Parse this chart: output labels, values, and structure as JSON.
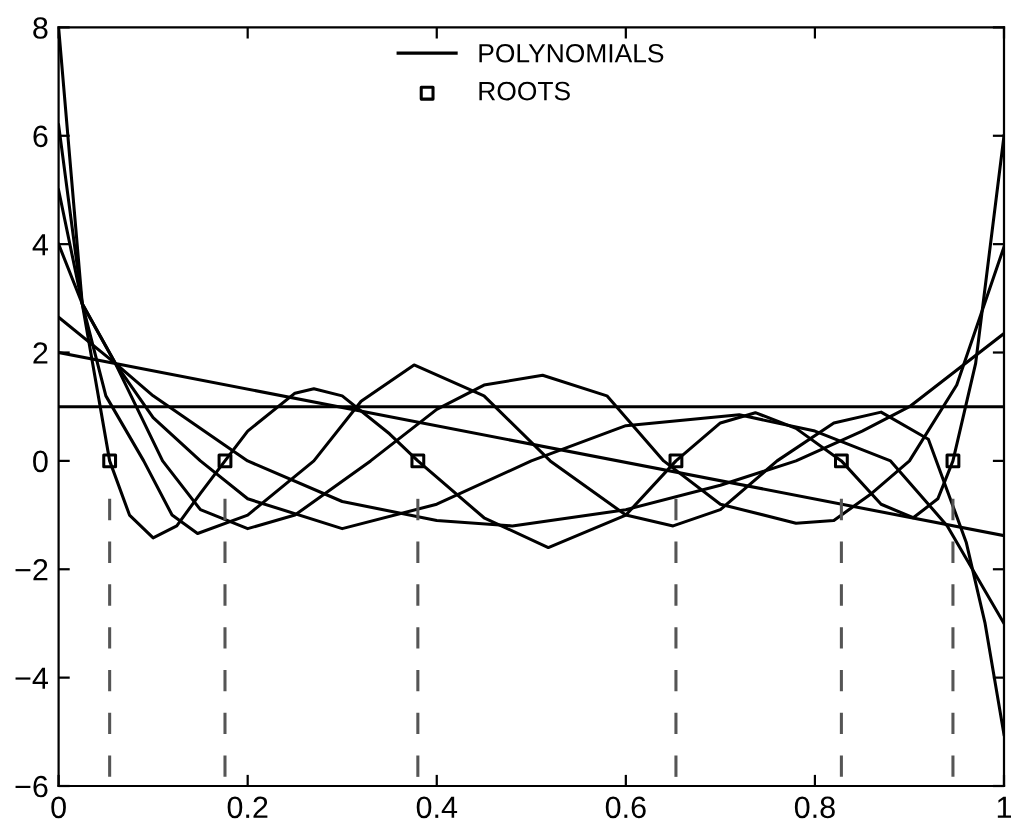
{
  "chart_data": {
    "type": "line",
    "xlim": [
      0,
      1
    ],
    "ylim": [
      -6,
      8
    ],
    "xticks": [
      0,
      0.2,
      0.4,
      0.6,
      0.8,
      1
    ],
    "yticks": [
      -6,
      -4,
      -2,
      0,
      2,
      4,
      6,
      8
    ],
    "grid": false,
    "legend": "top",
    "line_style": "solid",
    "marker": "none",
    "series": [
      {
        "name": "POLYNOMIALS",
        "color": "#000000",
        "x": [
          0,
          0.025,
          0.054,
          0.075,
          0.1,
          0.125,
          0.15,
          0.176,
          0.2,
          0.25,
          0.27,
          0.3,
          0.35,
          0.38,
          0.45,
          0.518,
          0.6,
          0.653,
          0.7,
          0.737,
          0.78,
          0.828,
          0.87,
          0.904,
          0.93,
          0.946,
          0.97,
          1
        ],
        "values": [
          8,
          2.9,
          0,
          -1.0,
          -1.42,
          -1.2,
          -0.6,
          0,
          0.55,
          1.25,
          1.33,
          1.2,
          0.5,
          0,
          -1.05,
          -1.6,
          -1.0,
          0,
          0.7,
          0.89,
          0.6,
          0,
          -0.8,
          -1.05,
          -0.7,
          0,
          1.8,
          6
        ]
      },
      {
        "color": "#000000",
        "x": [
          0,
          0.025,
          0.05,
          0.09,
          0.12,
          0.147,
          0.2,
          0.27,
          0.32,
          0.376,
          0.45,
          0.52,
          0.6,
          0.65,
          0.7,
          0.76,
          0.82,
          0.87,
          0.92,
          0.96,
          0.98,
          1
        ],
        "values": [
          6.2,
          2.9,
          1.2,
          0,
          -1.0,
          -1.34,
          -1.0,
          0,
          1.1,
          1.77,
          1.2,
          0,
          -1.0,
          -1.2,
          -0.9,
          0,
          0.7,
          0.9,
          0.4,
          -1.5,
          -3.0,
          -5.05
        ]
      },
      {
        "color": "#000000",
        "x": [
          0,
          0.025,
          0.06,
          0.11,
          0.15,
          0.2,
          0.25,
          0.33,
          0.4,
          0.45,
          0.512,
          0.58,
          0.64,
          0.7,
          0.78,
          0.82,
          0.86,
          0.9,
          0.95,
          1
        ],
        "values": [
          5,
          2.9,
          1.8,
          0,
          -0.9,
          -1.25,
          -1.0,
          0,
          0.95,
          1.4,
          1.58,
          1.2,
          0,
          -0.8,
          -1.15,
          -1.1,
          -0.6,
          0,
          1.4,
          3.95
        ]
      },
      {
        "color": "#000000",
        "x": [
          0,
          0.025,
          0.06,
          0.1,
          0.15,
          0.2,
          0.3,
          0.4,
          0.5,
          0.6,
          0.72,
          0.8,
          0.88,
          0.94,
          1
        ],
        "values": [
          4,
          2.9,
          1.8,
          0.8,
          0,
          -0.7,
          -1.25,
          -0.8,
          0,
          0.65,
          0.85,
          0.55,
          0,
          -1.2,
          -3.0
        ]
      },
      {
        "color": "#000000",
        "x": [
          0,
          0.06,
          0.1,
          0.2,
          0.3,
          0.4,
          0.48,
          0.6,
          0.7,
          0.78,
          0.85,
          0.9,
          1
        ],
        "values": [
          2.65,
          1.8,
          1.2,
          0,
          -0.75,
          -1.1,
          -1.2,
          -0.9,
          -0.45,
          0,
          0.55,
          1.0,
          2.35
        ]
      },
      {
        "color": "#000000",
        "x": [
          0,
          1
        ],
        "values": [
          2,
          -1.38
        ]
      },
      {
        "color": "#000000",
        "x": [
          0,
          1
        ],
        "values": [
          1,
          1
        ]
      },
      {
        "name": "ROOTS",
        "type": "scatter",
        "marker": "square",
        "color": "#000000",
        "x": [
          0.054,
          0.176,
          0.38,
          0.653,
          0.828,
          0.946
        ],
        "values": [
          0,
          0,
          0,
          0,
          0,
          0
        ]
      },
      {
        "color": "#555555",
        "line_style": "dashed",
        "x": [
          0.054,
          0.054
        ],
        "values": [
          -0.7,
          -6
        ]
      },
      {
        "color": "#555555",
        "line_style": "dashed",
        "x": [
          0.176,
          0.176
        ],
        "values": [
          -0.7,
          -6
        ]
      },
      {
        "color": "#555555",
        "line_style": "dashed",
        "x": [
          0.38,
          0.38
        ],
        "values": [
          -0.7,
          -6
        ]
      },
      {
        "color": "#555555",
        "line_style": "dashed",
        "x": [
          0.653,
          0.653
        ],
        "values": [
          -0.7,
          -6
        ]
      },
      {
        "color": "#555555",
        "line_style": "dashed",
        "x": [
          0.828,
          0.828
        ],
        "values": [
          -0.7,
          -6
        ]
      },
      {
        "color": "#555555",
        "line_style": "dashed",
        "x": [
          0.946,
          0.946
        ],
        "values": [
          -0.7,
          -6
        ]
      }
    ]
  }
}
